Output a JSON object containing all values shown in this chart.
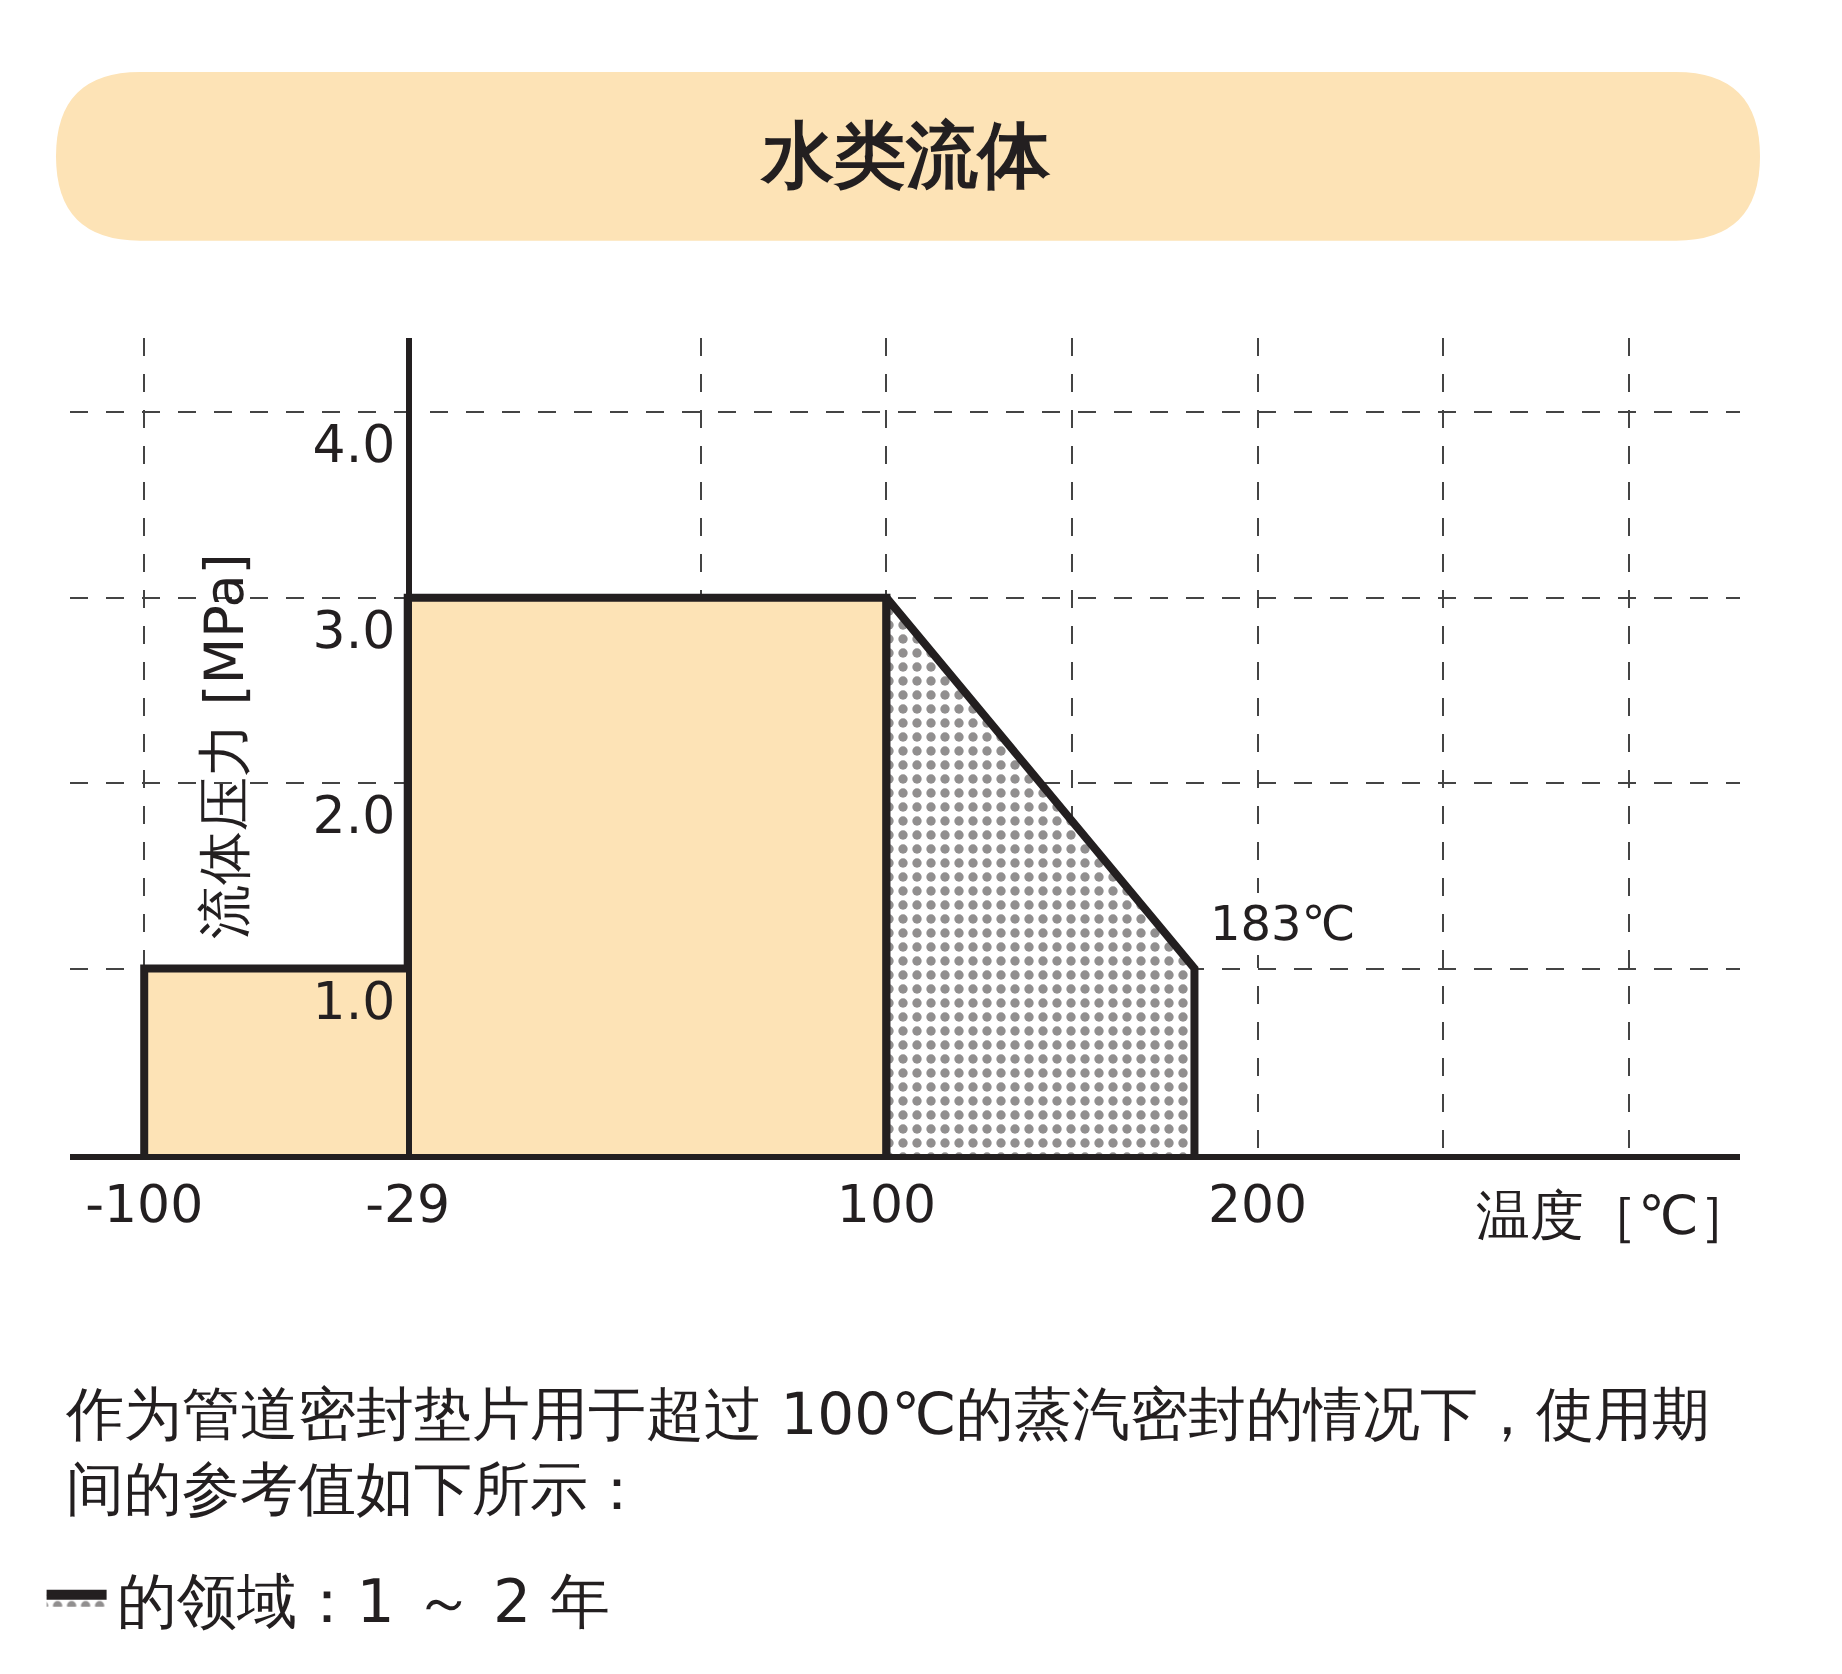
{
  "chart_data": {
    "type": "area",
    "title": "水类流体",
    "xlabel": "温度［℃］",
    "ylabel": "流体压力 [MPa]",
    "series": [
      {
        "color": "#fde3b6",
        "x": [
          -100,
          -100,
          -29,
          -29,
          100,
          100
        ],
        "values": [
          0,
          1.0,
          1.0,
          3.0,
          3.0,
          0
        ]
      },
      {
        "name": "的领域：1 ～ 2 年",
        "color": "#231f20",
        "x": [
          100,
          100,
          183,
          183
        ],
        "values": [
          0,
          3.0,
          1.0,
          0
        ]
      }
    ],
    "xlim": [
      -120,
      330
    ],
    "xticks": [
      -100,
      -29,
      {
        "value": 50,
        "label": null
      },
      100,
      {
        "value": 150,
        "label": null
      },
      200,
      {
        "value": 250,
        "label": null
      },
      {
        "value": 300,
        "label": null
      }
    ],
    "ylim": [
      0,
      4.4
    ],
    "yticks": [
      {
        "value": 1,
        "label": "1.0"
      },
      {
        "value": 2,
        "label": "2.0"
      },
      {
        "value": 3,
        "label": "3.0"
      },
      {
        "value": 4,
        "label": "4.0"
      }
    ],
    "grid": true,
    "legend": "bottom",
    "annotations": [
      {
        "text": "183℃",
        "x": 183,
        "y": 1.0
      },
      "作为管道密封垫片用于超过 100℃的蒸汽密封的情况下，使用期间的参考值如下所示："
    ]
  }
}
